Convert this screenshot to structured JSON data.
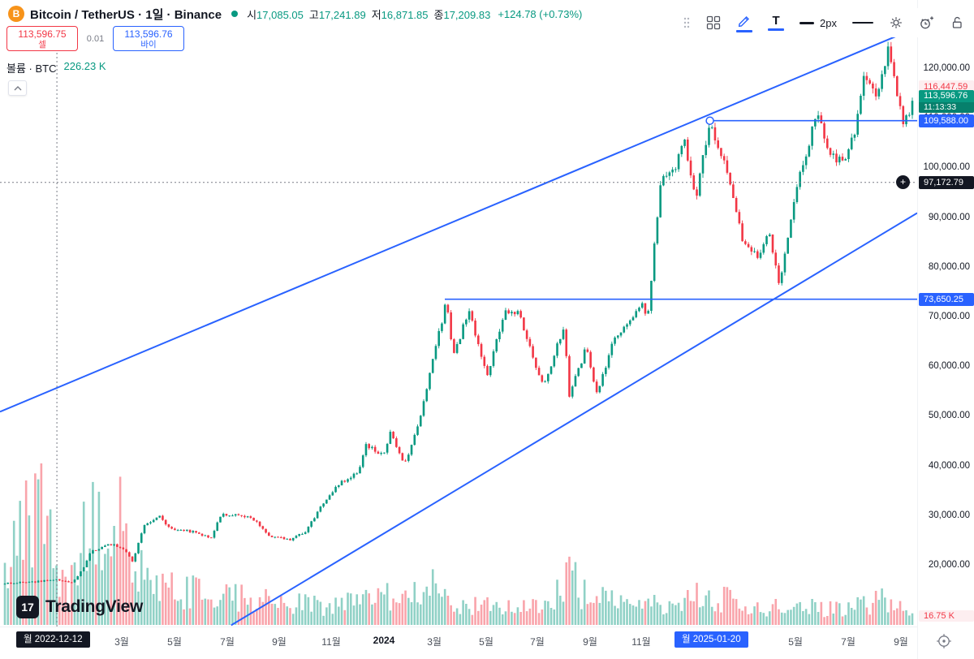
{
  "header": {
    "title": "Bitcoin / TetherUS · 1일 · Binance",
    "ohlc": [
      {
        "label": "시",
        "value": "17,085.05"
      },
      {
        "label": "고",
        "value": "17,241.89"
      },
      {
        "label": "저",
        "value": "16,871.85"
      },
      {
        "label": "종",
        "value": "17,209.83"
      }
    ],
    "change": "+124.78 (+0.73%)"
  },
  "order_panel": {
    "sell_price": "113,596.75",
    "sell_label": "셀",
    "spread": "0.01",
    "buy_price": "113,596.76",
    "buy_label": "바이"
  },
  "volume_row": {
    "label": "볼륨 · BTC",
    "value": "226.23 K"
  },
  "toolbar": {
    "line_width_label": "2px"
  },
  "logo": {
    "mark": "17",
    "text": "TradingView"
  },
  "price_axis": {
    "tags": {
      "alert_red": "116,447.59",
      "last_price": "113,596.76",
      "countdown": "11:13:33",
      "line1": "109,588.00",
      "crosshair": "97,172.79",
      "line2": "73,650.25",
      "volume": "16.75 K"
    }
  },
  "time_axis": {
    "crosshair_tag": "월 2022-12-12",
    "anchor_tag": "월 2025-01-20"
  },
  "chart_data": {
    "type": "candlestick",
    "title": "Bitcoin / TetherUS · 1일 · Binance",
    "interval": "1일",
    "exchange": "Binance",
    "visible_range": [
      "2022-11",
      "2025-09"
    ],
    "y_axis": {
      "min": 20000,
      "max": 120000,
      "step": 10000
    },
    "last_price": 113596.76,
    "alert_price": 116447.59,
    "crosshair": {
      "x_frac": 0.062,
      "price": 97172.79,
      "date": "2022-12-12"
    },
    "price_anchors": [
      [
        0.0,
        16500
      ],
      [
        0.032,
        16700
      ],
      [
        0.0566,
        17200
      ],
      [
        0.065,
        16800
      ],
      [
        0.0752,
        16600
      ],
      [
        0.0875,
        19900
      ],
      [
        0.0938,
        22700
      ],
      [
        0.118,
        24400
      ],
      [
        0.1327,
        23200
      ],
      [
        0.141,
        20500
      ],
      [
        0.153,
        28100
      ],
      [
        0.17,
        29900
      ],
      [
        0.184,
        27300
      ],
      [
        0.207,
        26900
      ],
      [
        0.227,
        25700
      ],
      [
        0.238,
        30200
      ],
      [
        0.258,
        30400
      ],
      [
        0.275,
        29200
      ],
      [
        0.291,
        26100
      ],
      [
        0.314,
        25200
      ],
      [
        0.332,
        27000
      ],
      [
        0.352,
        33100
      ],
      [
        0.37,
        36700
      ],
      [
        0.39,
        38700
      ],
      [
        0.397,
        44200
      ],
      [
        0.418,
        42300
      ],
      [
        0.425,
        46900
      ],
      [
        0.44,
        39900
      ],
      [
        0.458,
        49900
      ],
      [
        0.473,
        62500
      ],
      [
        0.487,
        73600
      ],
      [
        0.494,
        61900
      ],
      [
        0.511,
        71600
      ],
      [
        0.532,
        58300
      ],
      [
        0.551,
        71400
      ],
      [
        0.567,
        71100
      ],
      [
        0.584,
        60300
      ],
      [
        0.594,
        55900
      ],
      [
        0.616,
        68200
      ],
      [
        0.622,
        54200
      ],
      [
        0.641,
        64200
      ],
      [
        0.652,
        54300
      ],
      [
        0.671,
        65700
      ],
      [
        0.702,
        72700
      ],
      [
        0.708,
        69300
      ],
      [
        0.714,
        81000
      ],
      [
        0.724,
        99000
      ],
      [
        0.738,
        99700
      ],
      [
        0.748,
        106100
      ],
      [
        0.761,
        93500
      ],
      [
        0.776,
        109300
      ],
      [
        0.792,
        101400
      ],
      [
        0.815,
        84300
      ],
      [
        0.83,
        82000
      ],
      [
        0.841,
        87500
      ],
      [
        0.854,
        76300
      ],
      [
        0.87,
        93900
      ],
      [
        0.884,
        104100
      ],
      [
        0.895,
        111000
      ],
      [
        0.91,
        102800
      ],
      [
        0.924,
        100900
      ],
      [
        0.938,
        108100
      ],
      [
        0.946,
        119900
      ],
      [
        0.961,
        113500
      ],
      [
        0.974,
        124300
      ],
      [
        0.99,
        108500
      ],
      [
        0.995,
        110800
      ],
      [
        1.0,
        113597
      ]
    ],
    "volume_envelope": [
      [
        0,
        110
      ],
      [
        0.02,
        150
      ],
      [
        0.04,
        185
      ],
      [
        0.055,
        90
      ],
      [
        0.07,
        70
      ],
      [
        0.09,
        140
      ],
      [
        0.11,
        185
      ],
      [
        0.13,
        160
      ],
      [
        0.15,
        90
      ],
      [
        0.18,
        60
      ],
      [
        0.21,
        50
      ],
      [
        0.25,
        45
      ],
      [
        0.3,
        38
      ],
      [
        0.35,
        30
      ],
      [
        0.4,
        38
      ],
      [
        0.445,
        55
      ],
      [
        0.47,
        60
      ],
      [
        0.5,
        30
      ],
      [
        0.55,
        28
      ],
      [
        0.6,
        35
      ],
      [
        0.622,
        80
      ],
      [
        0.64,
        45
      ],
      [
        0.7,
        30
      ],
      [
        0.74,
        40
      ],
      [
        0.776,
        50
      ],
      [
        0.82,
        28
      ],
      [
        0.87,
        30
      ],
      [
        0.92,
        26
      ],
      [
        0.968,
        40
      ],
      [
        1,
        14
      ]
    ],
    "trendlines": [
      {
        "x1_frac": 0.0,
        "price1": 51000,
        "x2_frac": 0.976,
        "price2": 126500
      },
      {
        "x1_frac": 0.252,
        "price1": 8000,
        "x2_frac": 1.0,
        "price2": 91000
      }
    ],
    "horizontal_rays": [
      {
        "x_frac": 0.774,
        "price": 109588.0,
        "anchor_marker": true,
        "anchor_date": "2025-01-20"
      },
      {
        "x_frac": 0.485,
        "price": 73650.25
      }
    ],
    "x_axis_labels": [
      {
        "f": 0.1327,
        "t": "3월"
      },
      {
        "f": 0.1903,
        "t": "5월"
      },
      {
        "f": 0.2478,
        "t": "7월"
      },
      {
        "f": 0.3044,
        "t": "9월"
      },
      {
        "f": 0.3611,
        "t": "11월"
      },
      {
        "f": 0.4186,
        "t": "2024",
        "strong": true
      },
      {
        "f": 0.4735,
        "t": "3월"
      },
      {
        "f": 0.5301,
        "t": "5월"
      },
      {
        "f": 0.5858,
        "t": "7월"
      },
      {
        "f": 0.6434,
        "t": "9월"
      },
      {
        "f": 0.6991,
        "t": "11월"
      },
      {
        "f": 0.8673,
        "t": "5월"
      },
      {
        "f": 0.9248,
        "t": "7월"
      },
      {
        "f": 0.9823,
        "t": "9월"
      }
    ],
    "colors": {
      "up": "#089981",
      "down": "#f23645",
      "drawing": "#2962ff",
      "crosshair": "#787b86"
    }
  }
}
